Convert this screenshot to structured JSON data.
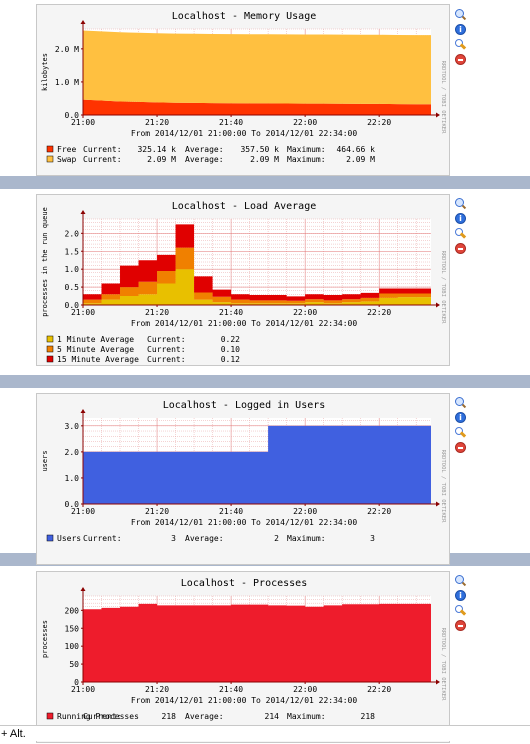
{
  "colors": {
    "band": "#aab7cc",
    "graph_bg": "#f5f5f5",
    "plot_bg": "#ffffff",
    "grid": "#e8a8a8",
    "axis": "#8b0000"
  },
  "icons": [
    "zoom-icon",
    "info-icon",
    "properties-icon",
    "delete-icon"
  ],
  "status_bar": {
    "text": "+ Alt."
  },
  "chart_data": [
    {
      "type": "area",
      "stacked": true,
      "title": "Localhost - Memory Usage",
      "ylabel": "kilobytes",
      "watermark": "RRDTOOL / TOBI OETIKER",
      "subtitle": "From 2014/12/01 21:00:00 To 2014/12/01 22:34:00",
      "x_ticks": [
        "21:00",
        "21:20",
        "21:40",
        "22:00",
        "22:20"
      ],
      "x_tick_values": [
        0,
        20,
        40,
        60,
        80
      ],
      "x_range": [
        0,
        94
      ],
      "y_ticks": [
        "0.0",
        "1.0 M",
        "2.0 M"
      ],
      "y_tick_values": [
        0,
        1000000,
        2000000
      ],
      "y_range": [
        0,
        2600000
      ],
      "x": [
        0,
        5,
        10,
        15,
        20,
        25,
        30,
        35,
        40,
        45,
        50,
        55,
        60,
        65,
        70,
        75,
        80,
        85,
        90,
        94
      ],
      "series": [
        {
          "name": "Free",
          "color": "#ff3300",
          "values": [
            464660,
            440000,
            410000,
            395000,
            380000,
            370000,
            365000,
            360000,
            355000,
            352000,
            350000,
            348000,
            345000,
            343000,
            340000,
            338000,
            335000,
            330000,
            326000,
            325140
          ]
        },
        {
          "name": "Swap",
          "color": "#ffc040",
          "values": [
            2090000,
            2090000,
            2090000,
            2090000,
            2090000,
            2090000,
            2090000,
            2090000,
            2090000,
            2090000,
            2090000,
            2090000,
            2090000,
            2090000,
            2090000,
            2090000,
            2090000,
            2090000,
            2090000,
            2090000
          ]
        }
      ],
      "legend": [
        {
          "name": "Free",
          "color": "#ff3300",
          "current_label": "Current:",
          "current": "325.14 k",
          "average_label": "Average:",
          "average": "357.50 k",
          "maximum_label": "Maximum:",
          "maximum": "464.66 k"
        },
        {
          "name": "Swap",
          "color": "#ffc040",
          "current_label": "Current:",
          "current": "2.09 M",
          "average_label": "Average:",
          "average": "2.09 M",
          "maximum_label": "Maximum:",
          "maximum": "2.09 M"
        }
      ]
    },
    {
      "type": "area",
      "stacked": true,
      "title": "Localhost - Load Average",
      "ylabel": "processes in the run queue",
      "watermark": "RRDTOOL / TOBI OETIKER",
      "subtitle": "From 2014/12/01 21:00:00 To 2014/12/01 22:34:00",
      "x_ticks": [
        "21:00",
        "21:20",
        "21:40",
        "22:00",
        "22:20"
      ],
      "x_tick_values": [
        0,
        20,
        40,
        60,
        80
      ],
      "x_range": [
        0,
        94
      ],
      "y_ticks": [
        "0.0",
        "0.5",
        "1.0",
        "1.5",
        "2.0"
      ],
      "y_tick_values": [
        0,
        0.5,
        1.0,
        1.5,
        2.0
      ],
      "y_range": [
        0,
        2.4
      ],
      "x": [
        0,
        5,
        10,
        15,
        20,
        25,
        30,
        35,
        40,
        45,
        50,
        55,
        60,
        65,
        70,
        75,
        80,
        85,
        90,
        94
      ],
      "step": true,
      "series": [
        {
          "name": "1 Minute Average",
          "color": "#e8c000",
          "values": [
            0.05,
            0.15,
            0.25,
            0.3,
            0.6,
            1.0,
            0.15,
            0.08,
            0.05,
            0.05,
            0.05,
            0.05,
            0.08,
            0.05,
            0.08,
            0.1,
            0.2,
            0.22,
            0.22,
            0.22
          ]
        },
        {
          "name": "5 Minute Average",
          "color": "#f08000",
          "values": [
            0.1,
            0.15,
            0.25,
            0.35,
            0.35,
            0.6,
            0.2,
            0.15,
            0.1,
            0.08,
            0.08,
            0.07,
            0.08,
            0.08,
            0.08,
            0.1,
            0.12,
            0.1,
            0.1,
            0.1
          ]
        },
        {
          "name": "15 Minute Average",
          "color": "#e00000",
          "values": [
            0.15,
            0.3,
            0.6,
            0.6,
            0.45,
            0.65,
            0.45,
            0.2,
            0.15,
            0.15,
            0.15,
            0.12,
            0.14,
            0.15,
            0.14,
            0.14,
            0.14,
            0.14,
            0.14,
            0.12
          ]
        }
      ],
      "legend": [
        {
          "name": "1 Minute Average",
          "color": "#e8c000",
          "current_label": "Current:",
          "current": "0.22"
        },
        {
          "name": "5 Minute Average",
          "color": "#f08000",
          "current_label": "Current:",
          "current": "0.10"
        },
        {
          "name": "15 Minute Average",
          "color": "#e00000",
          "current_label": "Current:",
          "current": "0.12"
        }
      ]
    },
    {
      "type": "area",
      "stacked": false,
      "title": "Localhost - Logged in Users",
      "ylabel": "users",
      "watermark": "RRDTOOL / TOBI OETIKER",
      "subtitle": "From 2014/12/01 21:00:00 To 2014/12/01 22:34:00",
      "x_ticks": [
        "21:00",
        "21:20",
        "21:40",
        "22:00",
        "22:20"
      ],
      "x_tick_values": [
        0,
        20,
        40,
        60,
        80
      ],
      "x_range": [
        0,
        94
      ],
      "y_ticks": [
        "0.0",
        "1.0",
        "2.0",
        "3.0"
      ],
      "y_tick_values": [
        0,
        1.0,
        2.0,
        3.0
      ],
      "y_range": [
        0,
        3.3
      ],
      "x": [
        0,
        5,
        10,
        15,
        20,
        25,
        30,
        35,
        40,
        45,
        50,
        55,
        60,
        65,
        70,
        75,
        80,
        85,
        90,
        94
      ],
      "step": true,
      "series": [
        {
          "name": "Users",
          "color": "#4060e0",
          "values": [
            2,
            2,
            2,
            2,
            2,
            2,
            2,
            2,
            2,
            2,
            3,
            3,
            3,
            3,
            3,
            3,
            3,
            3,
            3,
            3
          ]
        }
      ],
      "legend": [
        {
          "name": "Users",
          "color": "#4060e0",
          "current_label": "Current:",
          "current": "3",
          "average_label": "Average:",
          "average": "2",
          "maximum_label": "Maximum:",
          "maximum": "3"
        }
      ]
    },
    {
      "type": "area",
      "stacked": false,
      "title": "Localhost - Processes",
      "ylabel": "processes",
      "watermark": "RRDTOOL / TOBI OETIKER",
      "subtitle": "From 2014/12/01 21:00:00 To 2014/12/01 22:34:00",
      "x_ticks": [
        "21:00",
        "21:20",
        "21:40",
        "22:00",
        "22:20"
      ],
      "x_tick_values": [
        0,
        20,
        40,
        60,
        80
      ],
      "x_range": [
        0,
        94
      ],
      "y_ticks": [
        "0",
        "50",
        "100",
        "150",
        "200"
      ],
      "y_tick_values": [
        0,
        50,
        100,
        150,
        200
      ],
      "y_range": [
        0,
        240
      ],
      "x": [
        0,
        5,
        10,
        15,
        20,
        25,
        30,
        35,
        40,
        45,
        50,
        55,
        60,
        65,
        70,
        75,
        80,
        85,
        90,
        94
      ],
      "step": true,
      "series": [
        {
          "name": "Running Processes",
          "color": "#ee1c2c",
          "values": [
            203,
            207,
            210,
            218,
            214,
            214,
            214,
            214,
            216,
            216,
            214,
            213,
            210,
            214,
            217,
            217,
            218,
            218,
            218,
            218
          ]
        }
      ],
      "legend": [
        {
          "name": "Running Processes",
          "color": "#ee1c2c",
          "current_label": "Current:",
          "current": "218",
          "average_label": "Average:",
          "average": "214",
          "maximum_label": "Maximum:",
          "maximum": "218"
        }
      ]
    }
  ]
}
